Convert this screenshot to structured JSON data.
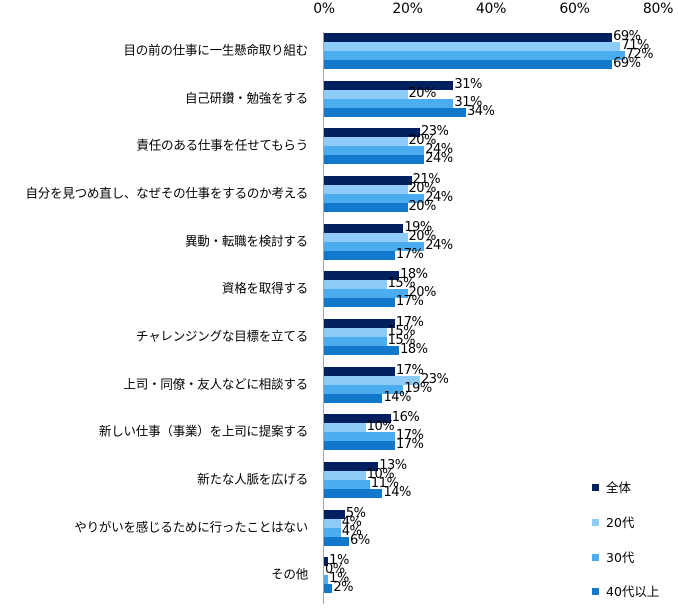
{
  "chart_data": {
    "type": "bar",
    "orientation": "horizontal",
    "title": "",
    "xlabel": "",
    "ylabel": "",
    "xlim": [
      0,
      80
    ],
    "x_ticks": [
      "0%",
      "20%",
      "40%",
      "60%",
      "80%"
    ],
    "x_tick_values": [
      0,
      20,
      40,
      60,
      80
    ],
    "grid": false,
    "legend_position": "right-bottom",
    "value_suffix": "%",
    "categories": [
      "目の前の仕事に一生懸命取り組む",
      "自己研鑽・勉強をする",
      "責任のある仕事を任せてもらう",
      "自分を見つめ直し、なぜその仕事をするのか考える",
      "異動・転職を検討する",
      "資格を取得する",
      "チャレンジングな目標を立てる",
      "上司・同僚・友人などに相談する",
      "新しい仕事（事業）を上司に提案する",
      "新たな人脈を広げる",
      "やりがいを感じるために行ったことはない",
      "その他"
    ],
    "series": [
      {
        "name": "全体",
        "color": "#002060",
        "values": [
          69,
          31,
          23,
          21,
          19,
          18,
          17,
          17,
          16,
          13,
          5,
          1
        ]
      },
      {
        "name": "20代",
        "color": "#8FCBF7",
        "values": [
          71,
          20,
          20,
          20,
          20,
          15,
          15,
          23,
          10,
          10,
          4,
          0
        ]
      },
      {
        "name": "30代",
        "color": "#4BADF0",
        "values": [
          72,
          31,
          24,
          24,
          24,
          20,
          15,
          19,
          17,
          11,
          4,
          1
        ]
      },
      {
        "name": "40代以上",
        "color": "#1278CC",
        "values": [
          69,
          34,
          24,
          20,
          17,
          17,
          18,
          14,
          17,
          14,
          6,
          2
        ]
      }
    ]
  }
}
